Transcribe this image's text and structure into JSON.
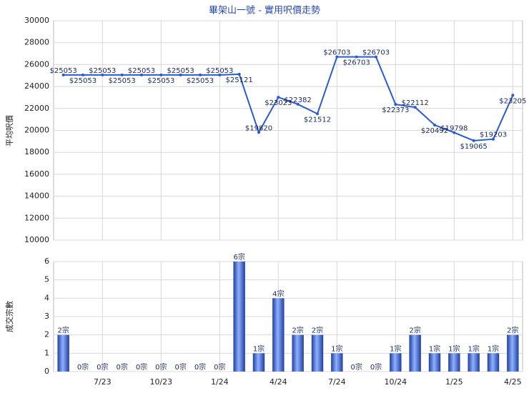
{
  "chart_data": [
    {
      "type": "line",
      "title": "畢架山一號 - 實用呎價走勢",
      "ylabel": "平均呎價",
      "series": [
        {
          "name": "平均呎價",
          "color": "#2a5bd0",
          "values": [
            25053,
            25053,
            25053,
            25053,
            25053,
            25053,
            25053,
            25053,
            25053,
            25121,
            19820,
            23023,
            22382,
            21512,
            26703,
            26703,
            26703,
            22373,
            22112,
            20492,
            19798,
            19065,
            19203,
            23205
          ],
          "value_labels": [
            "$25053",
            "$25053",
            "$25053",
            "$25053",
            "$25053",
            "$25053",
            "$25053",
            "$25053",
            "$25053",
            "$25121",
            "$19820",
            "$23023",
            "$22382",
            "$21512",
            "$26703",
            "$26703",
            "$26703",
            "$22373",
            "$22112",
            "$20492",
            "$19798",
            "$19065",
            "$19203",
            "$23205"
          ]
        }
      ],
      "ylim": [
        10000,
        30000
      ],
      "yticks": [
        10000,
        12000,
        14000,
        16000,
        18000,
        20000,
        22000,
        24000,
        26000,
        28000,
        30000
      ],
      "grid": true
    },
    {
      "type": "bar",
      "ylabel": "成交宗數",
      "categories": [
        null,
        null,
        "7/23",
        null,
        null,
        "10/23",
        null,
        null,
        "1/24",
        null,
        null,
        "4/24",
        null,
        null,
        "7/24",
        null,
        null,
        "10/24",
        null,
        null,
        "1/25",
        null,
        null,
        "4/25"
      ],
      "values": [
        2,
        0,
        0,
        0,
        0,
        0,
        0,
        0,
        0,
        6,
        1,
        4,
        2,
        2,
        1,
        0,
        0,
        1,
        2,
        1,
        1,
        1,
        1,
        2
      ],
      "value_labels": [
        "2宗",
        "0宗",
        "0宗",
        "0宗",
        "0宗",
        "0宗",
        "0宗",
        "0宗",
        "0宗",
        "6宗",
        "1宗",
        "4宗",
        "2宗",
        "2宗",
        "1宗",
        "0宗",
        "0宗",
        "1宗",
        "2宗",
        "1宗",
        "1宗",
        "1宗",
        "1宗",
        "2宗"
      ],
      "color": "#3b62c8",
      "ylim": [
        0,
        6
      ],
      "yticks": [
        0,
        1,
        2,
        3,
        4,
        5,
        6
      ],
      "grid": true
    }
  ]
}
